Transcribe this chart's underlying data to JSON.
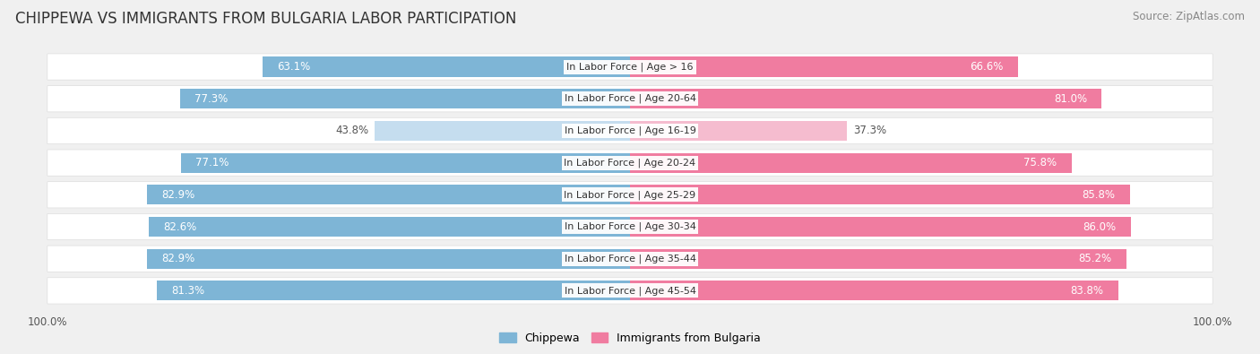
{
  "title": "CHIPPEWA VS IMMIGRANTS FROM BULGARIA LABOR PARTICIPATION",
  "source": "Source: ZipAtlas.com",
  "categories": [
    "In Labor Force | Age > 16",
    "In Labor Force | Age 20-64",
    "In Labor Force | Age 16-19",
    "In Labor Force | Age 20-24",
    "In Labor Force | Age 25-29",
    "In Labor Force | Age 30-34",
    "In Labor Force | Age 35-44",
    "In Labor Force | Age 45-54"
  ],
  "chippewa": [
    63.1,
    77.3,
    43.8,
    77.1,
    82.9,
    82.6,
    82.9,
    81.3
  ],
  "bulgaria": [
    66.6,
    81.0,
    37.3,
    75.8,
    85.8,
    86.0,
    85.2,
    83.8
  ],
  "chippewa_color": "#7eb5d6",
  "chippewa_light_color": "#c5ddef",
  "bulgaria_color": "#f07ca0",
  "bulgaria_light_color": "#f5bccf",
  "label_color_dark": "#555555",
  "label_color_white": "#ffffff",
  "bg_color": "#f0f0f0",
  "row_bg_color": "#ffffff",
  "max_val": 100.0,
  "legend_chippewa": "Chippewa",
  "legend_bulgaria": "Immigrants from Bulgaria",
  "title_fontsize": 12,
  "source_fontsize": 8.5,
  "bar_label_fontsize": 8.5,
  "category_fontsize": 8.0
}
